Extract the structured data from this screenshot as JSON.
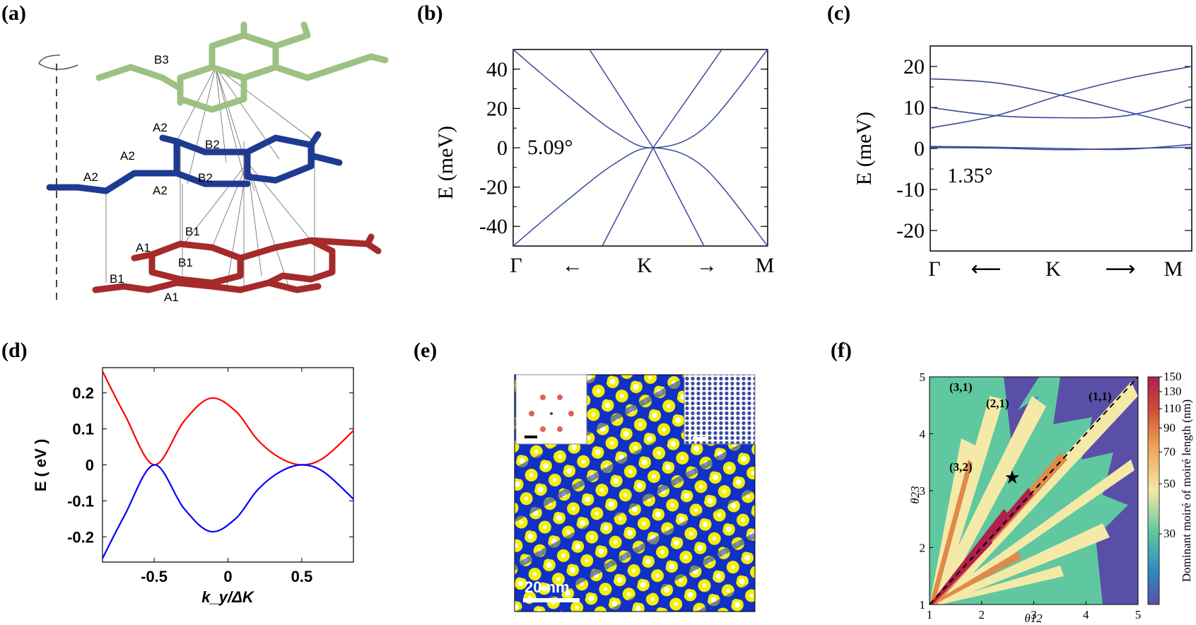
{
  "panels": {
    "a": {
      "label": "(a)",
      "atom_labels": [
        "B3",
        "A2",
        "B2",
        "A2",
        "B2",
        "A2",
        "B2",
        "A2",
        "B1",
        "A1",
        "B1",
        "B1",
        "A1"
      ],
      "colors": {
        "top": "#9dc183",
        "middle": "#1f3a93",
        "bottom": "#a52a2a"
      }
    },
    "b": {
      "label": "(b)",
      "angle_label": "5.09°"
    },
    "c": {
      "label": "(c)",
      "angle_label": "1.35°"
    },
    "d": {
      "label": "(d)"
    },
    "e": {
      "label": "(e)",
      "scale_label": "20 nm",
      "colors": {
        "blue": "#1030c8",
        "yellow": "#f4f000"
      }
    },
    "f": {
      "label": "(f)",
      "region_labels": [
        "(3,1)",
        "(2,1)",
        "(1,1)",
        "(3,2)"
      ],
      "colorbar_ticks": [
        "150",
        "130",
        "110",
        "90",
        "70",
        "50",
        "30"
      ],
      "colors": {
        "background": "#5fc8a0",
        "purple": "#5a4fa8",
        "cream": "#f5e9a8",
        "orange": "#e08a4a",
        "crimson": "#b0204a"
      }
    }
  },
  "chart_data": [
    {
      "panel": "b",
      "type": "line",
      "ylabel": "E (meV)",
      "ylim": [
        -50,
        50
      ],
      "yticks": [
        40,
        20,
        0,
        -20,
        -40
      ],
      "x_tick_labels": [
        "Γ",
        "←",
        "K",
        "→",
        "M"
      ],
      "series": [
        {
          "x": [
            0,
            0.15,
            0.3,
            0.45,
            0.6,
            0.75,
            1
          ],
          "y": [
            50,
            31,
            15,
            5,
            0,
            4,
            12
          ],
          "note_none": ""
        }
      ],
      "bands": {
        "steep_down": [
          [
            0.3,
            50
          ],
          [
            0.55,
            0
          ]
        ],
        "steep_up": [
          [
            0.55,
            0
          ],
          [
            0.82,
            50
          ]
        ],
        "steep_down2": [
          [
            0.55,
            0
          ],
          [
            0.35,
            -50
          ]
        ],
        "steep_up2": [
          [
            0.55,
            0
          ],
          [
            0.75,
            -50
          ]
        ],
        "parab_upper": [
          [
            0.0,
            50
          ],
          [
            0.2,
            28
          ],
          [
            0.4,
            8
          ],
          [
            0.55,
            0
          ],
          [
            0.75,
            10
          ],
          [
            1.0,
            50
          ]
        ],
        "parab_lower": [
          [
            0.0,
            -50
          ],
          [
            0.2,
            -28
          ],
          [
            0.4,
            -8
          ],
          [
            0.55,
            0
          ],
          [
            0.75,
            -10
          ],
          [
            1.0,
            -50
          ]
        ]
      }
    },
    {
      "panel": "c",
      "type": "line",
      "ylabel": "E (meV)",
      "ylim": [
        -25,
        25
      ],
      "yticks": [
        20,
        10,
        0,
        -10,
        -20
      ],
      "x_tick_labels": [
        "Γ",
        "⟵",
        "K",
        "⟶",
        "M"
      ],
      "series": [
        {
          "x": [
            0,
            0.25,
            0.5,
            0.75,
            1
          ],
          "y": [
            17,
            16,
            13,
            9,
            5
          ]
        },
        {
          "x": [
            0,
            0.25,
            0.5,
            0.75,
            1
          ],
          "y": [
            5,
            8,
            13,
            17,
            20
          ]
        },
        {
          "x": [
            0,
            0.25,
            0.5,
            0.75,
            1
          ],
          "y": [
            10,
            8,
            7.5,
            8,
            12
          ]
        },
        {
          "x": [
            0,
            0.25,
            0.5,
            0.75,
            1
          ],
          "y": [
            0.5,
            0.3,
            0,
            -0.2,
            1
          ]
        },
        {
          "x": [
            0,
            0.25,
            0.5,
            0.75,
            1
          ],
          "y": [
            0.2,
            0.1,
            -0.3,
            0,
            0.3
          ]
        }
      ]
    },
    {
      "panel": "d",
      "type": "line",
      "xlabel": "k_y/ΔK",
      "ylabel": "E ( eV )",
      "xlim": [
        -0.85,
        0.85
      ],
      "ylim": [
        -0.27,
        0.27
      ],
      "xticks": [
        -0.5,
        0,
        0.5
      ],
      "yticks": [
        0.2,
        0.1,
        0,
        -0.1,
        -0.2
      ],
      "series": [
        {
          "color": "#ff0000",
          "x": [
            -0.85,
            -0.7,
            -0.5,
            -0.3,
            -0.12,
            0.05,
            0.2,
            0.35,
            0.5,
            0.65,
            0.85
          ],
          "y": [
            0.26,
            0.14,
            0.0,
            0.12,
            0.185,
            0.15,
            0.07,
            0.02,
            0.0,
            0.02,
            0.095
          ]
        },
        {
          "color": "#0000ff",
          "x": [
            -0.85,
            -0.7,
            -0.5,
            -0.3,
            -0.12,
            0.05,
            0.2,
            0.35,
            0.5,
            0.65,
            0.85
          ],
          "y": [
            -0.26,
            -0.14,
            0.0,
            -0.12,
            -0.185,
            -0.15,
            -0.07,
            -0.02,
            0.0,
            -0.02,
            -0.095
          ]
        }
      ]
    },
    {
      "panel": "f",
      "type": "heatmap",
      "xlabel": "θ12",
      "ylabel": "θ23",
      "xlim": [
        1,
        5
      ],
      "ylim": [
        1,
        5
      ],
      "xticks": [
        1,
        2,
        3,
        4,
        5
      ],
      "yticks": [
        1,
        2,
        3,
        4,
        5
      ],
      "colorbar_label": "Dominant moiré of moiré length (nm)",
      "star": {
        "x": 2.6,
        "y": 2.75
      }
    }
  ]
}
